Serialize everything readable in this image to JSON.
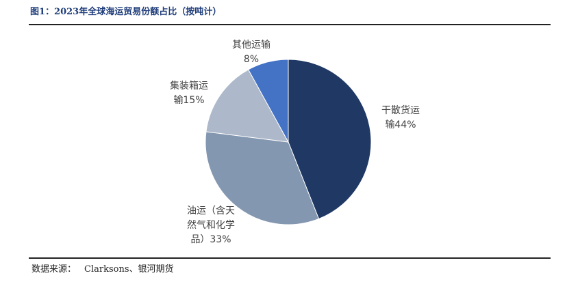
{
  "figure": {
    "title": "图1：2023年全球海运贸易份额占比（按吨计）",
    "source_label": "数据来源：",
    "source_text": "Clarksons、银河期货"
  },
  "chart_data": {
    "type": "pie",
    "title": "",
    "slices": [
      {
        "name": "干散货运输",
        "value": 44,
        "label_lines": [
          "干散货运",
          "输44%"
        ],
        "color": "#1f3864"
      },
      {
        "name": "油运（含天然气和化学品）",
        "value": 33,
        "label_lines": [
          "油运（含天",
          "然气和化学",
          "品）33%"
        ],
        "color": "#8497b0"
      },
      {
        "name": "集装箱运输",
        "value": 15,
        "label_lines": [
          "集装箱运",
          "输15%"
        ],
        "color": "#adb9ca"
      },
      {
        "name": "其他运输",
        "value": 8,
        "label_lines": [
          "其他运输",
          "8%"
        ],
        "color": "#4472c4"
      }
    ],
    "start_angle": "12 o'clock",
    "direction": "clockwise",
    "legend": "none"
  }
}
